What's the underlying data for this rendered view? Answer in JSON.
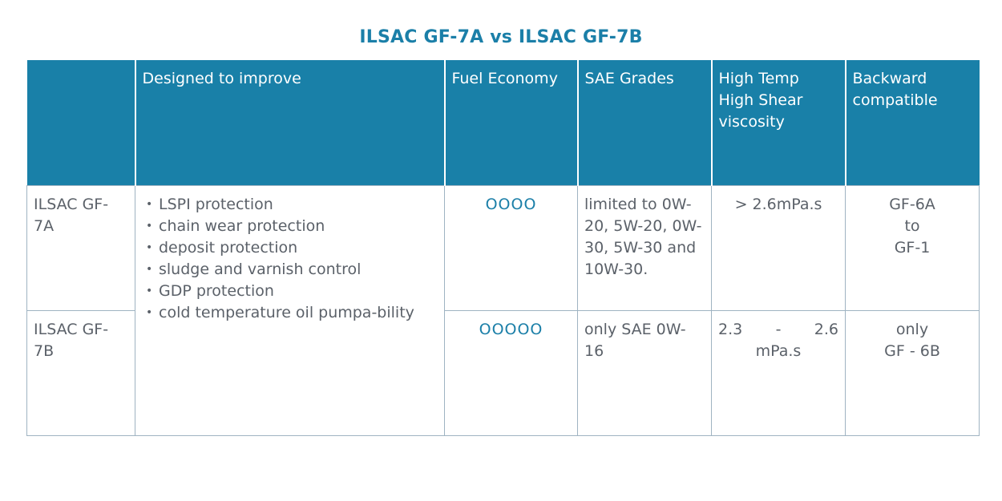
{
  "title": "ILSAC GF-7A vs ILSAC GF-7B",
  "headers": {
    "blank": "",
    "designed": "Designed to improve",
    "fuel": "Fuel Economy",
    "sae": "SAE Grades",
    "hths": "High Temp High Shear viscosity",
    "backward": "Backward compatible"
  },
  "rows": {
    "gf7a": {
      "name": "ILSAC GF-7A",
      "fuel": "OOOO",
      "sae": "limited to 0W-20, 5W-20, 0W-30, 5W-30 and 10W-30.",
      "hths": "> 2.6mPa.s",
      "backward_1": "GF-6A",
      "backward_2": "to",
      "backward_3": "GF-1"
    },
    "gf7b": {
      "name": "ILSAC GF-7B",
      "fuel": "OOOOO",
      "sae": "only SAE 0W-16",
      "hths_a": "2.3",
      "hths_dash": "-",
      "hths_b": "2.6",
      "hths_unit": "mPa.s",
      "backward_1": "only",
      "backward_2": "GF - 6B"
    }
  },
  "features": [
    "LSPI protection",
    "chain wear protection",
    "deposit protection",
    "sludge and varnish control",
    "GDP protection",
    "cold temperature oil pumpa-bility"
  ],
  "bullet_glyph": "•"
}
